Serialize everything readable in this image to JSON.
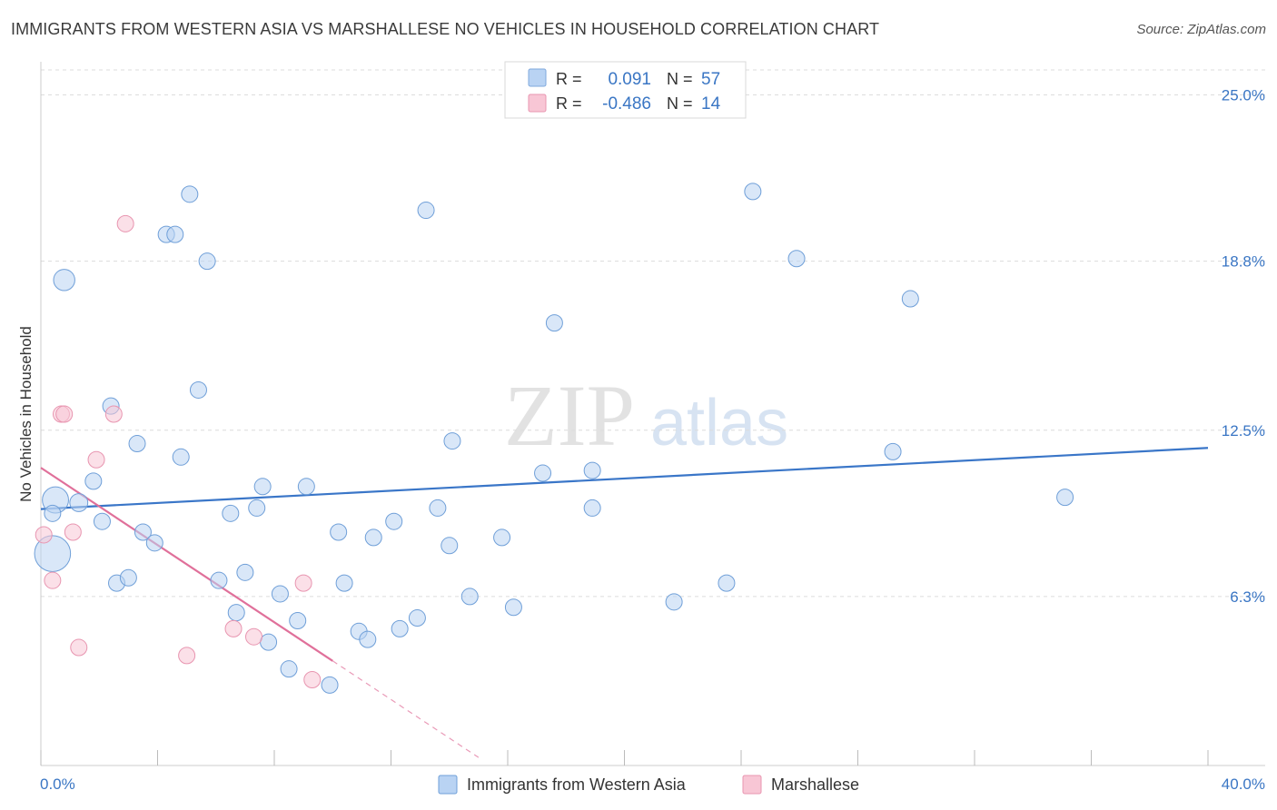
{
  "header": {
    "title": "IMMIGRANTS FROM WESTERN ASIA VS MARSHALLESE NO VEHICLES IN HOUSEHOLD CORRELATION CHART",
    "source": "Source: ZipAtlas.com"
  },
  "watermark": {
    "zip": "ZIP",
    "atlas": "atlas"
  },
  "legend": {
    "rows": [
      {
        "r_label": "R =",
        "r_value": "0.091",
        "n_label": "N =",
        "n_value": "57",
        "color": "#b9d3f3",
        "stroke": "#7fa8dc"
      },
      {
        "r_label": "R =",
        "r_value": "-0.486",
        "n_label": "N =",
        "n_value": "14",
        "color": "#f8c6d5",
        "stroke": "#e895b0"
      }
    ]
  },
  "chart_data": {
    "type": "scatter",
    "ylabel": "No Vehicles in Household",
    "xlim": [
      0,
      40
    ],
    "ylim": [
      0,
      26
    ],
    "x_tick_labels": [
      "0.0%",
      "40.0%"
    ],
    "y_ticks": [
      {
        "value": 6.3,
        "label": "6.3%"
      },
      {
        "value": 12.5,
        "label": "12.5%"
      },
      {
        "value": 18.8,
        "label": "18.8%"
      },
      {
        "value": 25.0,
        "label": "25.0%"
      }
    ],
    "grid": true,
    "series": [
      {
        "name": "Immigrants from Western Asia",
        "color": "#b9d3f3",
        "stroke": "#6f9fd8",
        "trend": {
          "x0": 0,
          "y0": 9.56,
          "x1": 40,
          "y1": 11.84,
          "color": "#3a76c8"
        },
        "points": [
          {
            "x": 0.4,
            "y": 7.9,
            "s": 2.2
          },
          {
            "x": 0.5,
            "y": 9.9,
            "s": 1.6
          },
          {
            "x": 0.8,
            "y": 18.1,
            "s": 1.3
          },
          {
            "x": 1.3,
            "y": 9.8,
            "s": 1.1
          },
          {
            "x": 1.8,
            "y": 10.6,
            "s": 1.0
          },
          {
            "x": 2.1,
            "y": 9.1,
            "s": 1.0
          },
          {
            "x": 2.4,
            "y": 13.4,
            "s": 1.0
          },
          {
            "x": 2.6,
            "y": 6.8,
            "s": 1.0
          },
          {
            "x": 3.0,
            "y": 7.0,
            "s": 1.0
          },
          {
            "x": 3.3,
            "y": 12.0,
            "s": 1.0
          },
          {
            "x": 3.5,
            "y": 8.7,
            "s": 1.0
          },
          {
            "x": 3.9,
            "y": 8.3,
            "s": 1.0
          },
          {
            "x": 4.3,
            "y": 19.8,
            "s": 1.0
          },
          {
            "x": 4.6,
            "y": 19.8,
            "s": 1.0
          },
          {
            "x": 4.8,
            "y": 11.5,
            "s": 1.0
          },
          {
            "x": 5.1,
            "y": 21.3,
            "s": 1.0
          },
          {
            "x": 5.4,
            "y": 14.0,
            "s": 1.0
          },
          {
            "x": 5.7,
            "y": 18.8,
            "s": 1.0
          },
          {
            "x": 6.1,
            "y": 6.9,
            "s": 1.0
          },
          {
            "x": 6.5,
            "y": 9.4,
            "s": 1.0
          },
          {
            "x": 6.7,
            "y": 5.7,
            "s": 1.0
          },
          {
            "x": 7.0,
            "y": 7.2,
            "s": 1.0
          },
          {
            "x": 7.4,
            "y": 9.6,
            "s": 1.0
          },
          {
            "x": 7.6,
            "y": 10.4,
            "s": 1.0
          },
          {
            "x": 7.8,
            "y": 4.6,
            "s": 1.0
          },
          {
            "x": 8.2,
            "y": 6.4,
            "s": 1.0
          },
          {
            "x": 8.5,
            "y": 3.6,
            "s": 1.0
          },
          {
            "x": 8.8,
            "y": 5.4,
            "s": 1.0
          },
          {
            "x": 9.1,
            "y": 10.4,
            "s": 1.0
          },
          {
            "x": 9.9,
            "y": 3.0,
            "s": 1.0
          },
          {
            "x": 10.2,
            "y": 8.7,
            "s": 1.0
          },
          {
            "x": 10.4,
            "y": 6.8,
            "s": 1.0
          },
          {
            "x": 10.9,
            "y": 5.0,
            "s": 1.0
          },
          {
            "x": 11.2,
            "y": 4.7,
            "s": 1.0
          },
          {
            "x": 11.4,
            "y": 8.5,
            "s": 1.0
          },
          {
            "x": 12.1,
            "y": 9.1,
            "s": 1.0
          },
          {
            "x": 12.3,
            "y": 5.1,
            "s": 1.0
          },
          {
            "x": 12.9,
            "y": 5.5,
            "s": 1.0
          },
          {
            "x": 13.2,
            "y": 20.7,
            "s": 1.0
          },
          {
            "x": 13.6,
            "y": 9.6,
            "s": 1.0
          },
          {
            "x": 14.0,
            "y": 8.2,
            "s": 1.0
          },
          {
            "x": 14.1,
            "y": 12.1,
            "s": 1.0
          },
          {
            "x": 14.7,
            "y": 6.3,
            "s": 1.0
          },
          {
            "x": 15.8,
            "y": 8.5,
            "s": 1.0
          },
          {
            "x": 16.2,
            "y": 5.9,
            "s": 1.0
          },
          {
            "x": 17.2,
            "y": 10.9,
            "s": 1.0
          },
          {
            "x": 17.6,
            "y": 16.5,
            "s": 1.0
          },
          {
            "x": 18.9,
            "y": 11.0,
            "s": 1.0
          },
          {
            "x": 18.9,
            "y": 9.6,
            "s": 1.0
          },
          {
            "x": 21.7,
            "y": 6.1,
            "s": 1.0
          },
          {
            "x": 23.5,
            "y": 6.8,
            "s": 1.0
          },
          {
            "x": 24.4,
            "y": 21.4,
            "s": 1.0
          },
          {
            "x": 25.9,
            "y": 18.9,
            "s": 1.0
          },
          {
            "x": 29.8,
            "y": 17.4,
            "s": 1.0
          },
          {
            "x": 29.2,
            "y": 11.7,
            "s": 1.0
          },
          {
            "x": 35.1,
            "y": 10.0,
            "s": 1.0
          },
          {
            "x": 0.4,
            "y": 9.4,
            "s": 1.0
          }
        ]
      },
      {
        "name": "Marshallese",
        "color": "#f8c6d5",
        "stroke": "#e895b0",
        "trend": {
          "x0": 0,
          "y0": 11.1,
          "x1": 10.0,
          "y1": 3.9,
          "dash_to_x": 15.0,
          "dash_to_y": 0.3,
          "color": "#e0709a"
        },
        "points": [
          {
            "x": 0.1,
            "y": 8.6,
            "s": 1.0
          },
          {
            "x": 0.4,
            "y": 6.9,
            "s": 1.0
          },
          {
            "x": 0.7,
            "y": 13.1,
            "s": 1.0
          },
          {
            "x": 0.8,
            "y": 13.1,
            "s": 1.0
          },
          {
            "x": 1.1,
            "y": 8.7,
            "s": 1.0
          },
          {
            "x": 1.3,
            "y": 4.4,
            "s": 1.0
          },
          {
            "x": 1.9,
            "y": 11.4,
            "s": 1.0
          },
          {
            "x": 2.5,
            "y": 13.1,
            "s": 1.0
          },
          {
            "x": 2.9,
            "y": 20.2,
            "s": 1.0
          },
          {
            "x": 5.0,
            "y": 4.1,
            "s": 1.0
          },
          {
            "x": 6.6,
            "y": 5.1,
            "s": 1.0
          },
          {
            "x": 7.3,
            "y": 4.8,
            "s": 1.0
          },
          {
            "x": 9.0,
            "y": 6.8,
            "s": 1.0
          },
          {
            "x": 9.3,
            "y": 3.2,
            "s": 1.0
          }
        ]
      }
    ]
  }
}
